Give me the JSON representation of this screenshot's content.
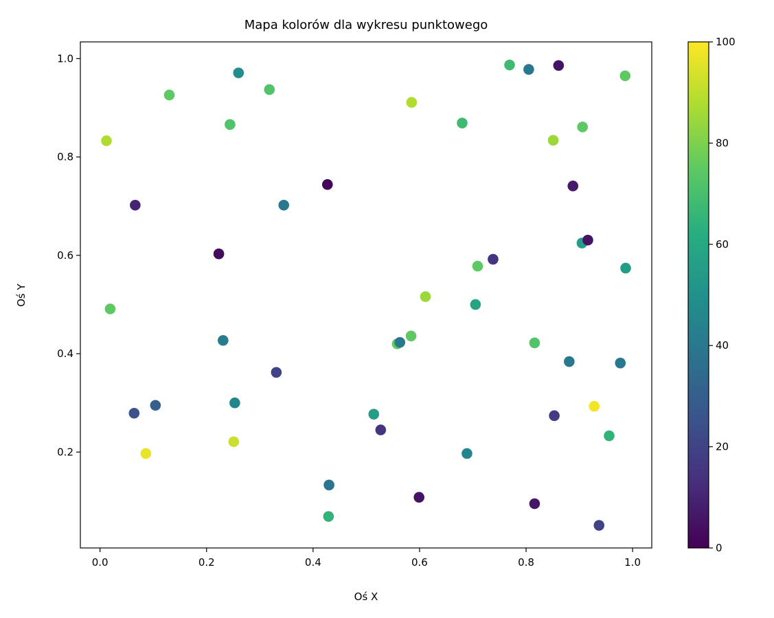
{
  "chart_data": {
    "type": "scatter",
    "title": "Mapa kolorów dla wykresu punktowego",
    "xlabel": "Oś X",
    "ylabel": "Oś Y",
    "xlim": [
      -0.037,
      1.036
    ],
    "ylim": [
      0.005,
      1.034
    ],
    "xticks": [
      "0.0",
      "0.2",
      "0.4",
      "0.6",
      "0.8",
      "1.0"
    ],
    "yticks": [
      "0.2",
      "0.4",
      "0.6",
      "0.8",
      "1.0"
    ],
    "grid": false,
    "colormap": "viridis",
    "colorbar": {
      "range": [
        0,
        100
      ],
      "ticks": [
        "0",
        "20",
        "40",
        "60",
        "80",
        "100"
      ]
    },
    "points": [
      {
        "x": 0.012,
        "y": 0.833,
        "c": 88
      },
      {
        "x": 0.019,
        "y": 0.491,
        "c": 75
      },
      {
        "x": 0.066,
        "y": 0.702,
        "c": 10
      },
      {
        "x": 0.064,
        "y": 0.279,
        "c": 25
      },
      {
        "x": 0.104,
        "y": 0.295,
        "c": 30
      },
      {
        "x": 0.086,
        "y": 0.197,
        "c": 97
      },
      {
        "x": 0.13,
        "y": 0.926,
        "c": 75
      },
      {
        "x": 0.244,
        "y": 0.866,
        "c": 72
      },
      {
        "x": 0.26,
        "y": 0.971,
        "c": 48
      },
      {
        "x": 0.223,
        "y": 0.603,
        "c": 3
      },
      {
        "x": 0.231,
        "y": 0.427,
        "c": 42
      },
      {
        "x": 0.253,
        "y": 0.3,
        "c": 45
      },
      {
        "x": 0.251,
        "y": 0.221,
        "c": 92
      },
      {
        "x": 0.318,
        "y": 0.937,
        "c": 72
      },
      {
        "x": 0.345,
        "y": 0.702,
        "c": 40
      },
      {
        "x": 0.331,
        "y": 0.362,
        "c": 20
      },
      {
        "x": 0.427,
        "y": 0.744,
        "c": 2
      },
      {
        "x": 0.43,
        "y": 0.133,
        "c": 38
      },
      {
        "x": 0.429,
        "y": 0.069,
        "c": 65
      },
      {
        "x": 0.514,
        "y": 0.277,
        "c": 55
      },
      {
        "x": 0.527,
        "y": 0.245,
        "c": 15
      },
      {
        "x": 0.558,
        "y": 0.42,
        "c": 75
      },
      {
        "x": 0.563,
        "y": 0.423,
        "c": 40
      },
      {
        "x": 0.584,
        "y": 0.436,
        "c": 75
      },
      {
        "x": 0.585,
        "y": 0.911,
        "c": 88
      },
      {
        "x": 0.611,
        "y": 0.516,
        "c": 85
      },
      {
        "x": 0.599,
        "y": 0.108,
        "c": 5
      },
      {
        "x": 0.68,
        "y": 0.869,
        "c": 68
      },
      {
        "x": 0.709,
        "y": 0.578,
        "c": 75
      },
      {
        "x": 0.705,
        "y": 0.5,
        "c": 58
      },
      {
        "x": 0.689,
        "y": 0.197,
        "c": 45
      },
      {
        "x": 0.738,
        "y": 0.592,
        "c": 15
      },
      {
        "x": 0.769,
        "y": 0.987,
        "c": 68
      },
      {
        "x": 0.805,
        "y": 0.978,
        "c": 40
      },
      {
        "x": 0.861,
        "y": 0.986,
        "c": 5
      },
      {
        "x": 0.851,
        "y": 0.834,
        "c": 85
      },
      {
        "x": 0.906,
        "y": 0.861,
        "c": 75
      },
      {
        "x": 0.888,
        "y": 0.741,
        "c": 7
      },
      {
        "x": 0.905,
        "y": 0.625,
        "c": 55
      },
      {
        "x": 0.916,
        "y": 0.631,
        "c": 5
      },
      {
        "x": 0.987,
        "y": 0.574,
        "c": 55
      },
      {
        "x": 0.986,
        "y": 0.965,
        "c": 75
      },
      {
        "x": 0.816,
        "y": 0.422,
        "c": 72
      },
      {
        "x": 0.881,
        "y": 0.384,
        "c": 40
      },
      {
        "x": 0.977,
        "y": 0.381,
        "c": 40
      },
      {
        "x": 0.853,
        "y": 0.274,
        "c": 18
      },
      {
        "x": 0.928,
        "y": 0.293,
        "c": 98
      },
      {
        "x": 0.956,
        "y": 0.233,
        "c": 65
      },
      {
        "x": 0.816,
        "y": 0.095,
        "c": 6
      },
      {
        "x": 0.937,
        "y": 0.051,
        "c": 20
      }
    ]
  }
}
